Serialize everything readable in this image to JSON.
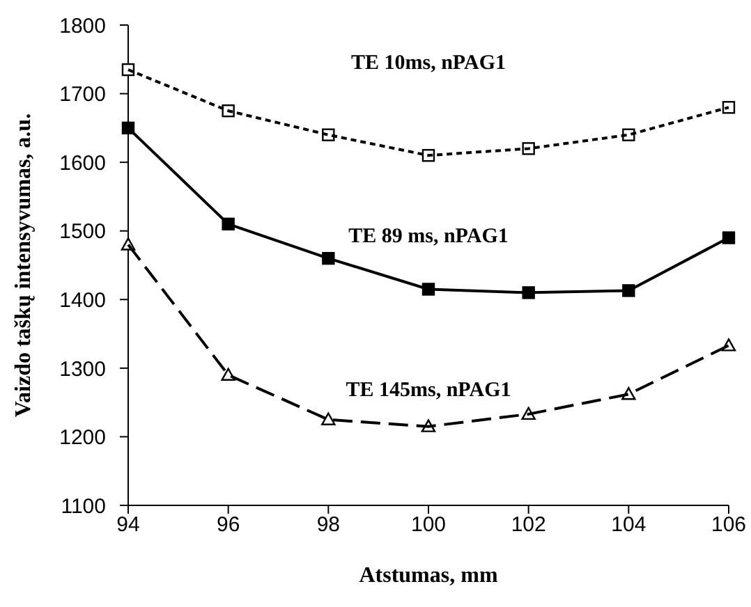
{
  "chart_data": {
    "type": "line",
    "xlabel": "Atstumas, mm",
    "ylabel": "Vaizdo taškų intensyvumas, a.u.",
    "x": [
      94,
      96,
      98,
      100,
      102,
      104,
      106
    ],
    "xlim": [
      94,
      106
    ],
    "xticks": [
      94,
      96,
      98,
      100,
      102,
      104,
      106
    ],
    "ylim": [
      1100,
      1800
    ],
    "yticks": [
      1100,
      1200,
      1300,
      1400,
      1500,
      1600,
      1700,
      1800
    ],
    "series": [
      {
        "name": "TE 10ms, nPAG1",
        "color": "#000000",
        "marker": "square",
        "line_style": "dotted",
        "values": [
          1735,
          1675,
          1640,
          1610,
          1620,
          1640,
          1680
        ]
      },
      {
        "name": "TE 89 ms, nPAG1",
        "color": "#000000",
        "marker": "square",
        "line_style": "solid",
        "values": [
          1650,
          1510,
          1460,
          1415,
          1410,
          1413,
          1490
        ]
      },
      {
        "name": "TE 145ms, nPAG1",
        "color": "#000000",
        "marker": "triangle",
        "line_style": "dashed",
        "values": [
          1480,
          1290,
          1225,
          1215,
          1233,
          1262,
          1333
        ]
      }
    ]
  }
}
